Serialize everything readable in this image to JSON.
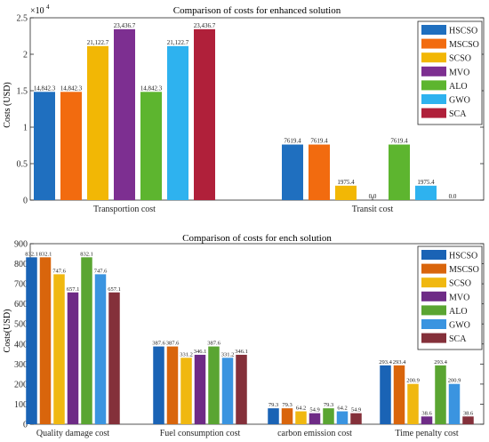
{
  "chart_data": [
    {
      "type": "bar",
      "title": "Comparison of costs for enhanced solution",
      "ylabel": "Costs (USD)",
      "xlabel": "",
      "exponent_label": "×10",
      "exponent_power": "4",
      "ylim": [
        0,
        25000
      ],
      "yticks": [
        0,
        5000,
        10000,
        15000,
        20000,
        25000
      ],
      "ytick_labels": [
        "0",
        "0.5",
        "1",
        "1.5",
        "2",
        "2.5"
      ],
      "grid": false,
      "legend_position": "top-right",
      "categories": [
        "Transportion cost",
        "Transit cost"
      ],
      "series": [
        {
          "name": "HSCSO",
          "color": "#1f6fbf",
          "values": [
            14842.3,
            7619.4
          ],
          "labels": [
            "14,842.3",
            "7619.4"
          ]
        },
        {
          "name": "MSCSO",
          "color": "#f26b0f",
          "values": [
            14842.3,
            7619.4
          ],
          "labels": [
            "14,842.3",
            "7619.4"
          ]
        },
        {
          "name": "SCSO",
          "color": "#f2b705",
          "values": [
            21122.7,
            1975.4
          ],
          "labels": [
            "21,122.7",
            "1975.4"
          ]
        },
        {
          "name": "MVO",
          "color": "#7d2f91",
          "values": [
            23436.7,
            0
          ],
          "labels": [
            "23,436.7",
            "0.0"
          ]
        },
        {
          "name": "ALO",
          "color": "#5db52f",
          "values": [
            14842.3,
            7619.4
          ],
          "labels": [
            "14,842.3",
            "7619.4"
          ]
        },
        {
          "name": "GWO",
          "color": "#2eb2ef",
          "values": [
            21122.7,
            1975.4
          ],
          "labels": [
            "21,122.7",
            "1975.4"
          ]
        },
        {
          "name": "SCA",
          "color": "#b0203a",
          "values": [
            23436.7,
            0
          ],
          "labels": [
            "23,436.7",
            "0.0"
          ]
        }
      ]
    },
    {
      "type": "bar",
      "title": "Comparison of costs for ench solution",
      "ylabel": "Costs(USD)",
      "xlabel": "",
      "ylim": [
        0,
        900
      ],
      "yticks": [
        0,
        100,
        200,
        300,
        400,
        500,
        600,
        700,
        800,
        900
      ],
      "ytick_labels": [
        "0",
        "100",
        "200",
        "300",
        "400",
        "500",
        "600",
        "700",
        "800",
        "900"
      ],
      "grid": false,
      "legend_position": "top-right",
      "categories": [
        "Quality damage cost",
        "Fuel consumption cost",
        "carbon emission cost",
        "Time penalty cost"
      ],
      "series": [
        {
          "name": "HSCSO",
          "color": "#1a63b5",
          "values": [
            832.1,
            387.6,
            79.3,
            293.4
          ],
          "labels": [
            "832.1",
            "387.6",
            "79.3",
            "293.4"
          ]
        },
        {
          "name": "MSCSO",
          "color": "#d9650c",
          "values": [
            832.1,
            387.6,
            79.3,
            293.4
          ],
          "labels": [
            "832.1",
            "387.6",
            "79.3",
            "293.4"
          ]
        },
        {
          "name": "SCSO",
          "color": "#f0b810",
          "values": [
            747.6,
            331.2,
            64.2,
            200.9
          ],
          "labels": [
            "747.6",
            "331.2",
            "64.2",
            "200.9"
          ]
        },
        {
          "name": "MVO",
          "color": "#6e2b86",
          "values": [
            657.1,
            346.1,
            54.9,
            38.6
          ],
          "labels": [
            "657.1",
            "346.1",
            "54.9",
            "38.6"
          ]
        },
        {
          "name": "ALO",
          "color": "#5aa532",
          "values": [
            832.1,
            387.6,
            79.3,
            293.4
          ],
          "labels": [
            "832.1",
            "387.6",
            "79.3",
            "293.4"
          ]
        },
        {
          "name": "GWO",
          "color": "#3a94e0",
          "values": [
            747.6,
            331.2,
            64.2,
            200.9
          ],
          "labels": [
            "747.6",
            "331.2",
            "64.2",
            "200.9"
          ]
        },
        {
          "name": "SCA",
          "color": "#84303a",
          "values": [
            657.1,
            346.1,
            54.9,
            38.6
          ],
          "labels": [
            "657.1",
            "346.1",
            "54.9",
            "38.6"
          ]
        }
      ]
    }
  ]
}
